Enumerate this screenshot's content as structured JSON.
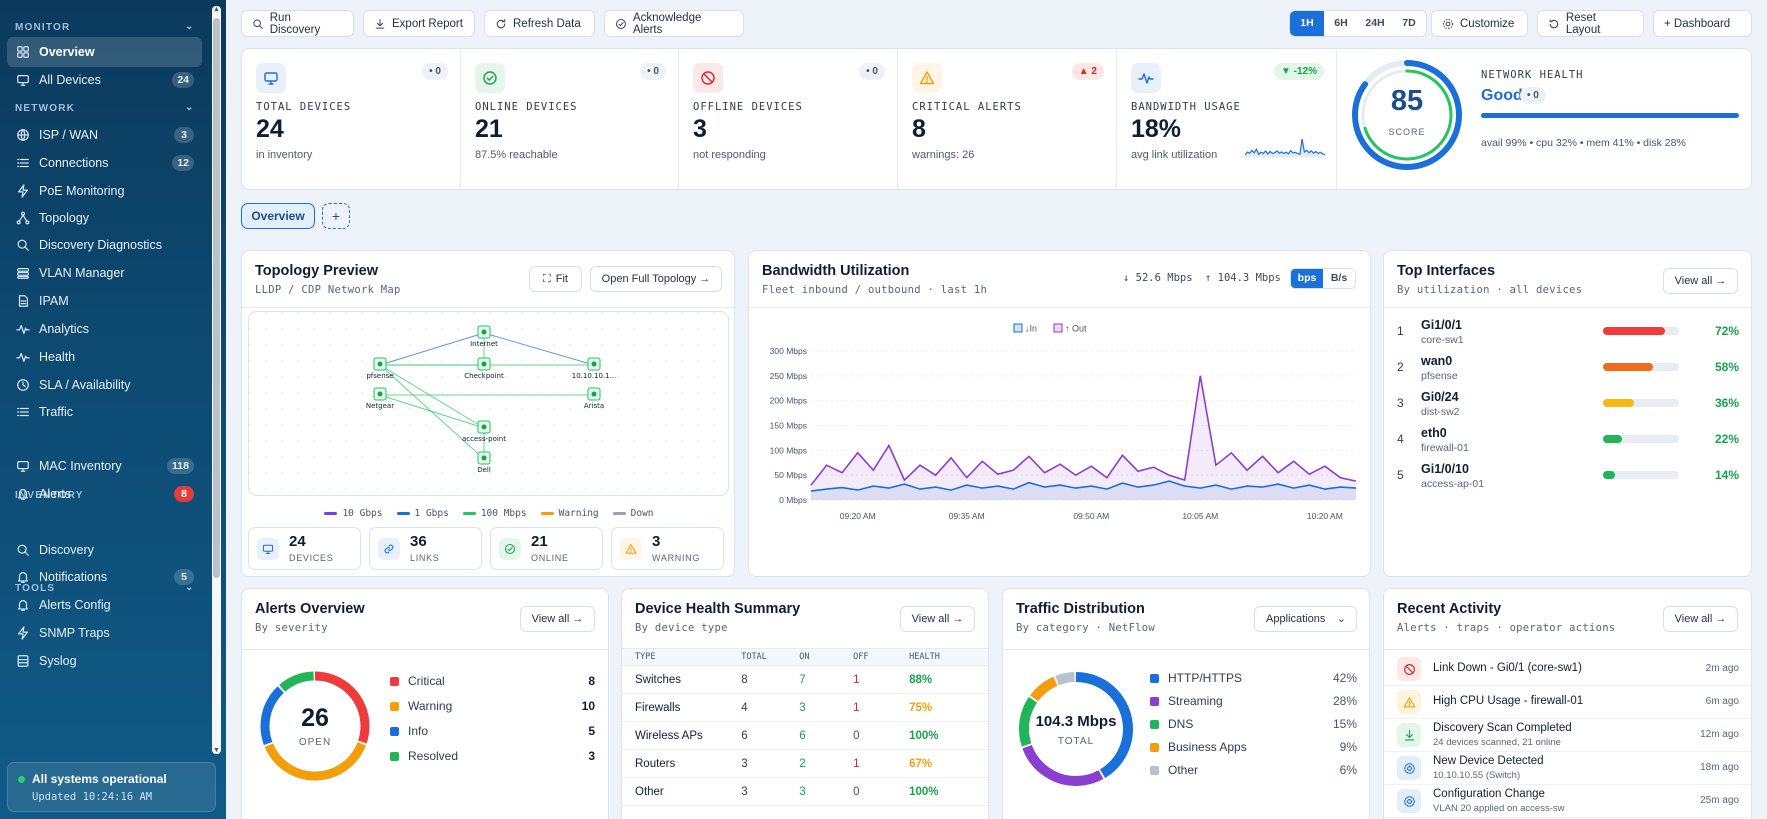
{
  "sidebar": {
    "sections": [
      {
        "label": "MONITOR"
      },
      {
        "label": "NETWORK"
      },
      {
        "label": "INVENTORY"
      },
      {
        "label": "TOOLS"
      }
    ],
    "items": [
      {
        "label": "Overview",
        "icon": "grid-icon",
        "badge": ""
      },
      {
        "label": "All Devices",
        "icon": "monitor-icon",
        "badge": "24"
      },
      {
        "label": "ISP / WAN",
        "icon": "globe-icon",
        "badge": "3"
      },
      {
        "label": "Connections",
        "icon": "list-icon",
        "badge": "12"
      },
      {
        "label": "PoE Monitoring",
        "icon": "bolt-icon",
        "badge": ""
      },
      {
        "label": "Topology",
        "icon": "topology-icon",
        "badge": ""
      },
      {
        "label": "Discovery Diagnostics",
        "icon": "search-icon",
        "badge": ""
      },
      {
        "label": "VLAN Manager",
        "icon": "layers-icon",
        "badge": ""
      },
      {
        "label": "IPAM",
        "icon": "document-icon",
        "badge": ""
      },
      {
        "label": "Analytics",
        "icon": "pulse-icon",
        "badge": ""
      },
      {
        "label": "Health",
        "icon": "heartbeat-icon",
        "badge": ""
      },
      {
        "label": "SLA / Availability",
        "icon": "clock-icon",
        "badge": ""
      },
      {
        "label": "Traffic",
        "icon": "list-icon",
        "badge": ""
      },
      {
        "label": "MAC Inventory",
        "icon": "monitor-icon",
        "badge": "118"
      },
      {
        "label": "Alerts",
        "icon": "bell-icon",
        "badge": "8"
      },
      {
        "label": "Discovery",
        "icon": "search-icon",
        "badge": ""
      },
      {
        "label": "Notifications",
        "icon": "bell-icon",
        "badge": "5"
      },
      {
        "label": "Alerts Config",
        "icon": "bell-icon",
        "badge": ""
      },
      {
        "label": "SNMP Traps",
        "icon": "bolt-icon",
        "badge": ""
      },
      {
        "label": "Syslog",
        "icon": "database-icon",
        "badge": ""
      }
    ],
    "status": {
      "title": "All systems operational",
      "updated": "Updated 10:24:16 AM"
    }
  },
  "toolbar": {
    "buttons": [
      {
        "label": "Run Discovery",
        "icon": "search-icon"
      },
      {
        "label": "Export Report",
        "icon": "download-icon"
      },
      {
        "label": "Refresh Data",
        "icon": "refresh-icon"
      },
      {
        "label": "Acknowledge Alerts",
        "icon": "check-circle-icon"
      }
    ],
    "ranges": [
      "1H",
      "6H",
      "24H",
      "7D"
    ],
    "selected_range": "1H",
    "customize": "Customize",
    "reset": "Reset Layout",
    "dashboard": "+ Dashboard"
  },
  "kpis": [
    {
      "label": "TOTAL DEVICES",
      "value": "24",
      "sub": "in inventory",
      "delta": "• 0",
      "icon": "monitor-icon",
      "color": "#1a6fd8"
    },
    {
      "label": "ONLINE DEVICES",
      "value": "21",
      "sub": "87.5% reachable",
      "delta": "• 0",
      "icon": "check-circle-icon",
      "color": "#16a34a"
    },
    {
      "label": "OFFLINE DEVICES",
      "value": "3",
      "sub": "not responding",
      "delta": "• 0",
      "icon": "ban-icon",
      "color": "#dc2626"
    },
    {
      "label": "CRITICAL ALERTS",
      "value": "8",
      "sub": "warnings: 26",
      "delta": "▲ 2",
      "icon": "warning-icon",
      "color": "#f59e0b"
    },
    {
      "label": "BANDWIDTH USAGE",
      "value": "18%",
      "sub": "avg link utilization",
      "delta": "▼ -12%",
      "icon": "pulse-icon",
      "color": "#1a6fd8"
    }
  ],
  "health": {
    "score": "85",
    "score_label": "SCORE",
    "score_value": 85,
    "title": "NETWORK HEALTH",
    "status": "Good",
    "delta": "• 0",
    "detail": "avail 99% • cpu 32% • mem 41% • disk 28%"
  },
  "view_tabs": {
    "active": "Overview",
    "add": "+"
  },
  "topology": {
    "title": "Topology Preview",
    "subtitle": "LLDP / CDP Network Map",
    "fit": "Fit",
    "open": "Open Full Topology →",
    "nodes": [
      "Internet",
      "pfsense",
      "Checkpoint",
      "10.10.10.1...",
      "Netgear",
      "Arista",
      "access-point",
      "Dell"
    ],
    "legend": [
      {
        "label": "10 Gbps",
        "color": "#7c3aed"
      },
      {
        "label": "1 Gbps",
        "color": "#1a6fd8"
      },
      {
        "label": "100 Mbps",
        "color": "#22c55e"
      },
      {
        "label": "Warning",
        "color": "#f59e0b"
      },
      {
        "label": "Down",
        "color": "#94a3b8"
      }
    ],
    "stats": [
      {
        "value": "24",
        "label": "DEVICES",
        "icon": "monitor-icon",
        "color": "#1a6fd8"
      },
      {
        "value": "36",
        "label": "LINKS",
        "icon": "link-icon",
        "color": "#1a6fd8"
      },
      {
        "value": "21",
        "label": "ONLINE",
        "icon": "check-circle-icon",
        "color": "#16a34a"
      },
      {
        "value": "3",
        "label": "WARNING",
        "icon": "warning-icon",
        "color": "#f59e0b"
      }
    ]
  },
  "bandwidth": {
    "title": "Bandwidth Utilization",
    "subtitle": "Fleet inbound / outbound · last 1h",
    "in_rate": "↓ 52.6 Mbps",
    "out_rate": "↑ 104.3 Mbps",
    "units": [
      "bps",
      "B/s"
    ],
    "selected_unit": "bps"
  },
  "chart_data": {
    "type": "area",
    "x": [
      "09:14",
      "09:16",
      "09:18",
      "09:20",
      "09:22",
      "09:24",
      "09:26",
      "09:28",
      "09:30",
      "09:32",
      "09:34",
      "09:36",
      "09:38",
      "09:40",
      "09:42",
      "09:44",
      "09:46",
      "09:48",
      "09:50",
      "09:52",
      "09:54",
      "09:56",
      "09:58",
      "10:00",
      "10:02",
      "10:04",
      "10:06",
      "10:08",
      "10:10",
      "10:12",
      "10:14",
      "10:16",
      "10:18",
      "10:20",
      "10:22",
      "10:24"
    ],
    "x_ticks": [
      "09:20 AM",
      "09:35 AM",
      "09:50 AM",
      "10:05 AM",
      "10:20 AM"
    ],
    "y_ticks": [
      "0 Mbps",
      "50 Mbps",
      "100 Mbps",
      "150 Mbps",
      "200 Mbps",
      "250 Mbps",
      "300 Mbps"
    ],
    "ylim": [
      0,
      300
    ],
    "legend_position": "top-center",
    "series": [
      {
        "name": "↓In",
        "color": "#1a6fd8",
        "values": [
          18,
          22,
          25,
          20,
          28,
          24,
          32,
          22,
          26,
          20,
          30,
          24,
          28,
          22,
          35,
          26,
          30,
          24,
          28,
          22,
          34,
          26,
          30,
          38,
          28,
          24,
          30,
          22,
          28,
          26,
          32,
          24,
          30,
          22,
          26,
          24
        ]
      },
      {
        "name": "↑ Out",
        "color": "#8b3fd1",
        "values": [
          30,
          70,
          55,
          95,
          60,
          110,
          40,
          70,
          50,
          85,
          45,
          78,
          52,
          60,
          88,
          55,
          72,
          50,
          68,
          45,
          90,
          58,
          66,
          50,
          40,
          250,
          70,
          95,
          60,
          88,
          55,
          78,
          52,
          68,
          45,
          38
        ]
      }
    ]
  },
  "interfaces": {
    "title": "Top Interfaces",
    "subtitle": "By utilization · all devices",
    "view_all": "View all →",
    "rows": [
      {
        "rank": "1",
        "name": "Gi1/0/1",
        "device": "core-sw1",
        "pct": "72%",
        "value": 72,
        "color": "#ef3b3b"
      },
      {
        "rank": "2",
        "name": "wan0",
        "device": "pfsense",
        "pct": "58%",
        "value": 58,
        "color": "#f26b1d"
      },
      {
        "rank": "3",
        "name": "Gi0/24",
        "device": "dist-sw2",
        "pct": "36%",
        "value": 36,
        "color": "#f6b812"
      },
      {
        "rank": "4",
        "name": "eth0",
        "device": "firewall-01",
        "pct": "22%",
        "value": 22,
        "color": "#22b45a"
      },
      {
        "rank": "5",
        "name": "Gi1/0/10",
        "device": "access-ap-01",
        "pct": "14%",
        "value": 14,
        "color": "#22b45a"
      }
    ]
  },
  "alerts": {
    "title": "Alerts Overview",
    "subtitle": "By severity",
    "view_all": "View all →",
    "total": "26",
    "total_label": "OPEN",
    "rows": [
      {
        "label": "Critical",
        "count": "8",
        "value": 8,
        "color": "#ef3b3b"
      },
      {
        "label": "Warning",
        "count": "10",
        "value": 10,
        "color": "#f59e0b"
      },
      {
        "label": "Info",
        "count": "5",
        "value": 5,
        "color": "#1a6fd8"
      },
      {
        "label": "Resolved",
        "count": "3",
        "value": 3,
        "color": "#22b45a"
      }
    ]
  },
  "device_health": {
    "title": "Device Health Summary",
    "subtitle": "By device type",
    "view_all": "View all →",
    "headers": [
      "TYPE",
      "TOTAL",
      "ON",
      "OFF",
      "HEALTH"
    ],
    "rows": [
      {
        "type": "Switches",
        "total": "8",
        "on": "7",
        "off": "1",
        "health": "88%"
      },
      {
        "type": "Firewalls",
        "total": "4",
        "on": "3",
        "off": "1",
        "health": "75%"
      },
      {
        "type": "Wireless APs",
        "total": "6",
        "on": "6",
        "off": "0",
        "health": "100%"
      },
      {
        "type": "Routers",
        "total": "3",
        "on": "2",
        "off": "1",
        "health": "67%"
      },
      {
        "type": "Other",
        "total": "3",
        "on": "3",
        "off": "0",
        "health": "100%"
      }
    ]
  },
  "traffic": {
    "title": "Traffic Distribution",
    "subtitle": "By category · NetFlow",
    "dropdown": "Applications",
    "total": "104.3 Mbps",
    "total_label": "TOTAL",
    "rows": [
      {
        "label": "HTTP/HTTPS",
        "pct": "42%",
        "value": 42,
        "color": "#1a6fd8"
      },
      {
        "label": "Streaming",
        "pct": "28%",
        "value": 28,
        "color": "#8b3fd1"
      },
      {
        "label": "DNS",
        "pct": "15%",
        "value": 15,
        "color": "#22b45a"
      },
      {
        "label": "Business Apps",
        "pct": "9%",
        "value": 9,
        "color": "#f59e0b"
      },
      {
        "label": "Other",
        "pct": "6%",
        "value": 6,
        "color": "#b8c2cf"
      }
    ]
  },
  "activity": {
    "title": "Recent Activity",
    "subtitle": "Alerts · traps · operator actions",
    "view_all": "View all →",
    "rows": [
      {
        "title": "Link Down - Gi0/1 (core-sw1)",
        "detail": "",
        "time": "2m ago",
        "icon": "ban-icon",
        "color": "#dc2626",
        "bg": "#fde8e8"
      },
      {
        "title": "High CPU Usage - firewall-01",
        "detail": "",
        "time": "6m ago",
        "icon": "warning-icon",
        "color": "#f59e0b",
        "bg": "#fef3dc"
      },
      {
        "title": "Discovery Scan Completed",
        "detail": "24 devices scanned, 21 online",
        "time": "12m ago",
        "icon": "download-icon",
        "color": "#16a34a",
        "bg": "#e3f6ea"
      },
      {
        "title": "New Device Detected",
        "detail": "10.10.10.55 (Switch)",
        "time": "18m ago",
        "icon": "gear-icon",
        "color": "#1a6fd8",
        "bg": "#e3eefb"
      },
      {
        "title": "Configuration Change",
        "detail": "VLAN 20 applied on access-sw",
        "time": "25m ago",
        "icon": "gear-icon",
        "color": "#1a6fd8",
        "bg": "#e3eefb"
      }
    ]
  }
}
